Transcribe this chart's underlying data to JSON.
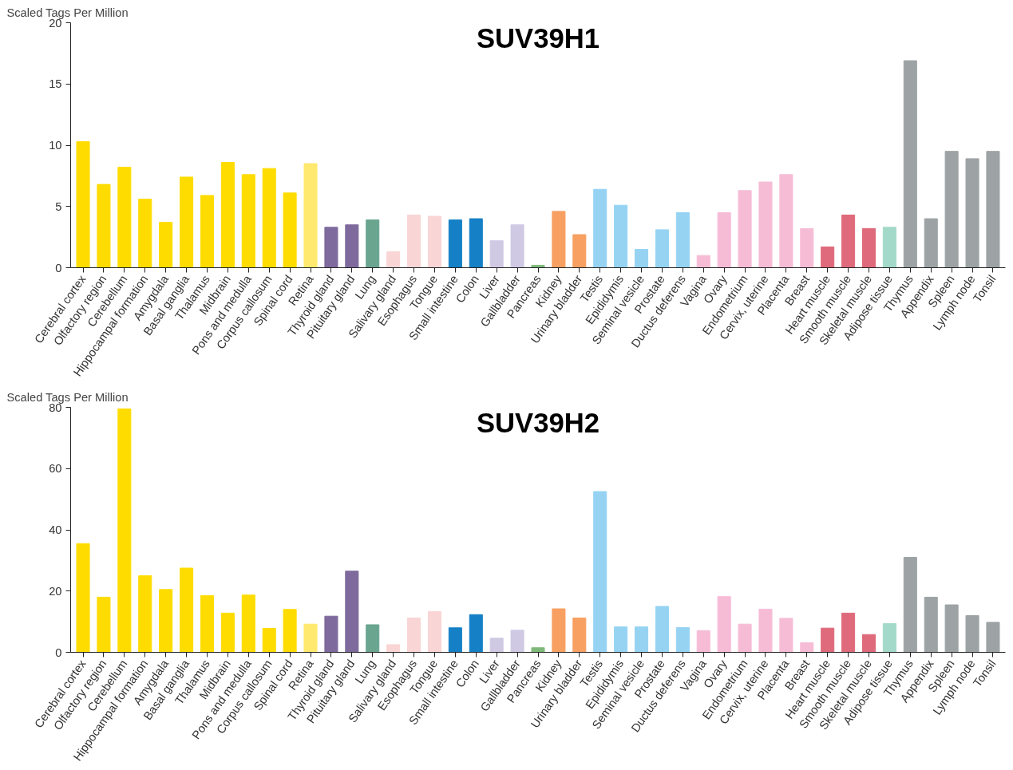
{
  "chart_data": [
    {
      "type": "bar",
      "title": "SUV39H1",
      "ylabel": "Scaled Tags Per Million",
      "categories": [
        "Cerebral cortex",
        "Olfactory region",
        "Cerebellum",
        "Hippocampal formation",
        "Amygdala",
        "Basal ganglia",
        "Thalamus",
        "Midbrain",
        "Pons and medulla",
        "Corpus callosum",
        "Spinal cord",
        "Retina",
        "Thyroid gland",
        "Pituitary gland",
        "Lung",
        "Salivary gland",
        "Esophagus",
        "Tongue",
        "Small intestine",
        "Colon",
        "Liver",
        "Gallbladder",
        "Pancreas",
        "Kidney",
        "Urinary bladder",
        "Testis",
        "Epididymis",
        "Seminal vesicle",
        "Prostate",
        "Ductus deferens",
        "Vagina",
        "Ovary",
        "Endometrium",
        "Cervix, uterine",
        "Placenta",
        "Breast",
        "Heart muscle",
        "Smooth muscle",
        "Skeletal muscle",
        "Adipose tissue",
        "Thymus",
        "Appendix",
        "Spleen",
        "Lymph node",
        "Tonsil"
      ],
      "values": [
        10.3,
        6.8,
        8.2,
        5.6,
        3.7,
        7.4,
        5.9,
        8.6,
        7.6,
        8.1,
        6.1,
        8.5,
        3.3,
        3.5,
        3.9,
        1.3,
        4.3,
        4.2,
        3.9,
        4.0,
        2.2,
        3.5,
        0.2,
        4.6,
        2.7,
        6.4,
        5.1,
        1.5,
        3.1,
        4.5,
        1.0,
        4.5,
        6.3,
        7.0,
        7.6,
        3.2,
        1.7,
        4.3,
        3.2,
        3.3,
        16.9,
        4.0,
        9.5,
        8.9,
        9.5
      ],
      "colors": [
        "#ffdc00",
        "#ffdc00",
        "#ffdc00",
        "#ffdc00",
        "#ffdc00",
        "#ffdc00",
        "#ffdc00",
        "#ffdc00",
        "#ffdc00",
        "#ffdc00",
        "#ffdc00",
        "#ffe96e",
        "#7e6a9c",
        "#7e6a9c",
        "#6aa590",
        "#f9d5d5",
        "#f9d5d5",
        "#f9d5d5",
        "#1580c6",
        "#1580c6",
        "#d0c9e4",
        "#d0c9e4",
        "#7fb97a",
        "#f7a062",
        "#f7a062",
        "#96d3f3",
        "#96d3f3",
        "#96d3f3",
        "#96d3f3",
        "#96d3f3",
        "#f6bcd6",
        "#f6bcd6",
        "#f6bcd6",
        "#f6bcd6",
        "#f6bcd6",
        "#f6bcd6",
        "#de6a7b",
        "#de6a7b",
        "#de6a7b",
        "#a3d9c8",
        "#9da3a5",
        "#9da3a5",
        "#9da3a5",
        "#9da3a5",
        "#9da3a5"
      ],
      "ylim": [
        0,
        20
      ],
      "yticks": [
        0,
        5,
        10,
        15,
        20
      ],
      "grid": false
    },
    {
      "type": "bar",
      "title": "SUV39H2",
      "ylabel": "Scaled Tags Per Million",
      "categories": [
        "Cerebral cortex",
        "Olfactory region",
        "Cerebellum",
        "Hippocampal formation",
        "Amygdala",
        "Basal ganglia",
        "Thalamus",
        "Midbrain",
        "Pons and medulla",
        "Corpus callosum",
        "Spinal cord",
        "Retina",
        "Thyroid gland",
        "Pituitary gland",
        "Lung",
        "Salivary gland",
        "Esophagus",
        "Tongue",
        "Small intestine",
        "Colon",
        "Liver",
        "Gallbladder",
        "Pancreas",
        "Kidney",
        "Urinary bladder",
        "Testis",
        "Epididymis",
        "Seminal vesicle",
        "Prostate",
        "Ductus deferens",
        "Vagina",
        "Ovary",
        "Endometrium",
        "Cervix, uterine",
        "Placenta",
        "Breast",
        "Heart muscle",
        "Smooth muscle",
        "Skeletal muscle",
        "Adipose tissue",
        "Thymus",
        "Appendix",
        "Spleen",
        "Lymph node",
        "Tonsil"
      ],
      "values": [
        35.5,
        18,
        79.5,
        25,
        20.5,
        27.5,
        18.5,
        12.8,
        18.7,
        7.8,
        14,
        9.2,
        11.8,
        26.5,
        9,
        2.5,
        11.2,
        13.3,
        8,
        12.3,
        4.6,
        7.2,
        1.5,
        14.2,
        11.2,
        52.5,
        8.3,
        8.3,
        15,
        8.1,
        7.1,
        18.2,
        9.2,
        14.1,
        11.1,
        3.1,
        7.9,
        12.8,
        5.8,
        9.4,
        31,
        18,
        15.5,
        12,
        9.8
      ],
      "colors": [
        "#ffdc00",
        "#ffdc00",
        "#ffdc00",
        "#ffdc00",
        "#ffdc00",
        "#ffdc00",
        "#ffdc00",
        "#ffdc00",
        "#ffdc00",
        "#ffdc00",
        "#ffdc00",
        "#ffe96e",
        "#7e6a9c",
        "#7e6a9c",
        "#6aa590",
        "#f9d5d5",
        "#f9d5d5",
        "#f9d5d5",
        "#1580c6",
        "#1580c6",
        "#d0c9e4",
        "#d0c9e4",
        "#7fb97a",
        "#f7a062",
        "#f7a062",
        "#96d3f3",
        "#96d3f3",
        "#96d3f3",
        "#96d3f3",
        "#96d3f3",
        "#f6bcd6",
        "#f6bcd6",
        "#f6bcd6",
        "#f6bcd6",
        "#f6bcd6",
        "#f6bcd6",
        "#de6a7b",
        "#de6a7b",
        "#de6a7b",
        "#a3d9c8",
        "#9da3a5",
        "#9da3a5",
        "#9da3a5",
        "#9da3a5",
        "#9da3a5"
      ],
      "ylim": [
        0,
        80
      ],
      "yticks": [
        0,
        20,
        40,
        60,
        80
      ],
      "grid": false
    }
  ]
}
